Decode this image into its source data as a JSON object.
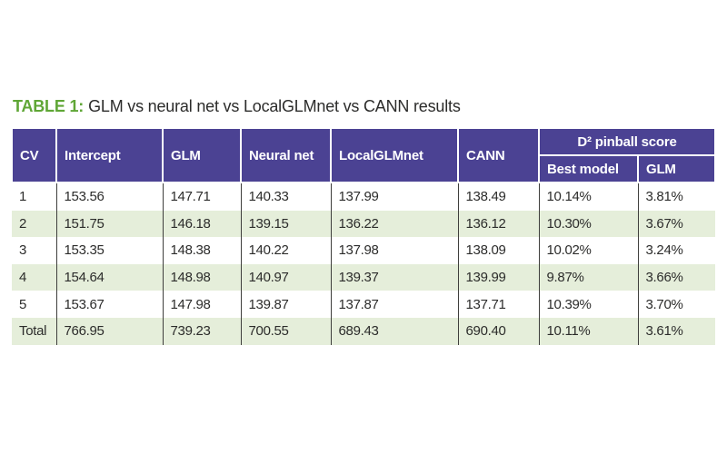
{
  "caption": {
    "label": "TABLE 1:",
    "text": "GLM vs neural net vs LocalGLMnet vs CANN results"
  },
  "table": {
    "columns": [
      "CV",
      "Intercept",
      "GLM",
      "Neural net",
      "LocalGLMnet",
      "CANN"
    ],
    "group_header": {
      "label": "D² pinball score",
      "sub_columns": [
        "Best model",
        "GLM"
      ]
    },
    "rows": [
      [
        "1",
        "153.56",
        "147.71",
        "140.33",
        "137.99",
        "138.49",
        "10.14%",
        "3.81%"
      ],
      [
        "2",
        "151.75",
        "146.18",
        "139.15",
        "136.22",
        "136.12",
        "10.30%",
        "3.67%"
      ],
      [
        "3",
        "153.35",
        "148.38",
        "140.22",
        "137.98",
        "138.09",
        "10.02%",
        "3.24%"
      ],
      [
        "4",
        "154.64",
        "148.98",
        "140.97",
        "139.37",
        "139.99",
        "9.87%",
        "3.66%"
      ],
      [
        "5",
        "153.67",
        "147.98",
        "139.87",
        "137.87",
        "137.71",
        "10.39%",
        "3.70%"
      ],
      [
        "Total",
        "766.95",
        "739.23",
        "700.55",
        "689.43",
        "690.40",
        "10.11%",
        "3.61%"
      ]
    ]
  },
  "colors": {
    "title_green": "#5FA636",
    "header_purple": "#4B4293",
    "header_text": "#FFFFFF",
    "row_green": "#E5EEDA",
    "border_dark": "#3E3E3C",
    "text_dark": "#2C2C2B"
  }
}
